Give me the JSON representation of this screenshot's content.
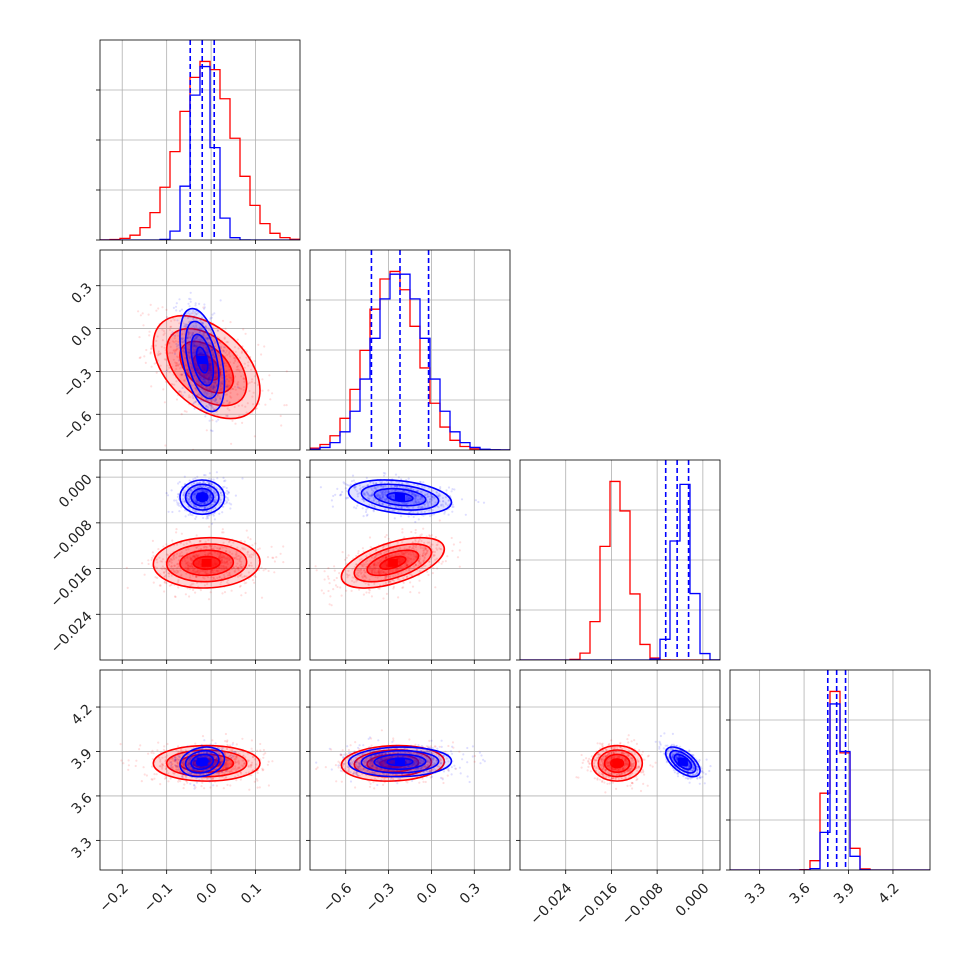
{
  "chart_data": {
    "type": "corner",
    "title": "",
    "grid": true,
    "legend": "none",
    "colors": {
      "series_a": "#0000ff",
      "series_b": "#ff0000"
    },
    "parameters": [
      {
        "range": [
          -0.25,
          0.2
        ],
        "ticks": [
          -0.2,
          -0.1,
          0.0,
          0.1
        ],
        "tick_labels": [
          "−0.2",
          "−0.1",
          "0.0",
          "0.1"
        ]
      },
      {
        "range": [
          -0.85,
          0.55
        ],
        "ticks": [
          -0.6,
          -0.3,
          0.0,
          0.3
        ],
        "tick_labels": [
          "−0.6",
          "−0.3",
          "0.0",
          "0.3"
        ]
      },
      {
        "range": [
          -0.032,
          0.003
        ],
        "ticks": [
          -0.024,
          -0.016,
          -0.008,
          0.0
        ],
        "tick_labels": [
          "−0.024",
          "−0.016",
          "−0.008",
          "0.000"
        ]
      },
      {
        "range": [
          3.1,
          4.45
        ],
        "ticks": [
          3.3,
          3.6,
          3.9,
          4.2
        ],
        "tick_labels": [
          "3.3",
          "3.6",
          "3.9",
          "4.2"
        ]
      }
    ],
    "series": [
      {
        "color": "#0000ff",
        "means": [
          -0.02,
          -0.22,
          -0.0035,
          3.83
        ],
        "sds": [
          0.025,
          0.18,
          0.0015,
          0.05
        ],
        "quantiles": [
          [
            -0.047,
            -0.02,
            0.007
          ],
          [
            -0.42,
            -0.22,
            -0.02
          ],
          [
            -0.0065,
            -0.0045,
            -0.0025
          ],
          [
            3.76,
            3.82,
            3.88
          ]
        ]
      },
      {
        "color": "#ff0000",
        "means": [
          -0.01,
          -0.27,
          -0.015,
          3.82
        ],
        "sds": [
          0.06,
          0.18,
          0.0022,
          0.06
        ],
        "quantiles": []
      }
    ],
    "correlations": {
      "blue": {
        "0-1": -0.45,
        "0-2": 0.0,
        "0-3": 0.2,
        "1-2": -0.3,
        "1-3": 0.05,
        "2-3": -0.6
      },
      "red": {
        "0-1": -0.45,
        "0-2": 0.05,
        "0-3": 0.0,
        "1-2": 0.55,
        "1-3": 0.1,
        "2-3": 0.0
      }
    }
  }
}
